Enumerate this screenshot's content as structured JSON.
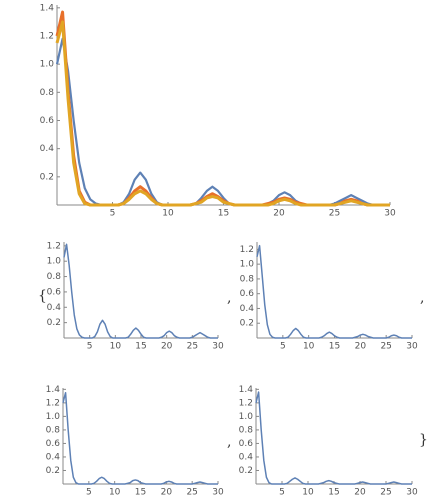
{
  "chart_data": [
    {
      "type": "line",
      "x": [
        0,
        0.5,
        1,
        1.5,
        2,
        2.5,
        3,
        3.5,
        4,
        4.5,
        5,
        5.5,
        6,
        6.5,
        7,
        7.5,
        8,
        8.5,
        9,
        9.5,
        10,
        10.5,
        11,
        11.5,
        12,
        12.5,
        13,
        13.5,
        14,
        14.5,
        15,
        15.5,
        16,
        16.5,
        17,
        17.5,
        18,
        18.5,
        19,
        19.5,
        20,
        20.5,
        21,
        21.5,
        22,
        22.5,
        23,
        23.5,
        24,
        24.5,
        25,
        25.5,
        26,
        26.5,
        27,
        27.5,
        28,
        28.5,
        29,
        29.5,
        30
      ],
      "series": [
        {
          "color": "#5E81B5",
          "values": [
            1,
            1.18,
            0.95,
            0.6,
            0.3,
            0.12,
            0.04,
            0.01,
            0,
            0,
            0,
            0,
            0.02,
            0.08,
            0.18,
            0.23,
            0.18,
            0.08,
            0.02,
            0,
            0,
            0,
            0,
            0,
            0,
            0.01,
            0.05,
            0.1,
            0.13,
            0.1,
            0.05,
            0.01,
            0,
            0,
            0,
            0,
            0,
            0,
            0.01,
            0.03,
            0.07,
            0.09,
            0.07,
            0.03,
            0.01,
            0,
            0,
            0,
            0,
            0,
            0.01,
            0.03,
            0.05,
            0.07,
            0.05,
            0.03,
            0.01,
            0,
            0,
            0,
            0
          ]
        },
        {
          "color": "#E8702A",
          "values": [
            1.2,
            1.37,
            0.8,
            0.35,
            0.1,
            0.02,
            0,
            0,
            0,
            0,
            0,
            0,
            0.01,
            0.05,
            0.1,
            0.13,
            0.1,
            0.05,
            0.01,
            0,
            0,
            0,
            0,
            0,
            0,
            0.01,
            0.03,
            0.06,
            0.08,
            0.06,
            0.03,
            0.01,
            0,
            0,
            0,
            0,
            0,
            0,
            0.01,
            0.02,
            0.04,
            0.05,
            0.04,
            0.02,
            0.01,
            0,
            0,
            0,
            0,
            0,
            0,
            0.01,
            0.03,
            0.04,
            0.03,
            0.01,
            0,
            0,
            0,
            0,
            0
          ]
        },
        {
          "color": "#E1A524",
          "values": [
            1.15,
            1.3,
            0.75,
            0.3,
            0.08,
            0.01,
            0,
            0,
            0,
            0,
            0,
            0,
            0.01,
            0.04,
            0.08,
            0.1,
            0.08,
            0.04,
            0.01,
            0,
            0,
            0,
            0,
            0,
            0,
            0.01,
            0.02,
            0.05,
            0.06,
            0.05,
            0.02,
            0.01,
            0,
            0,
            0,
            0,
            0,
            0,
            0,
            0.01,
            0.03,
            0.04,
            0.03,
            0.01,
            0,
            0,
            0,
            0,
            0,
            0,
            0,
            0.01,
            0.02,
            0.03,
            0.02,
            0.01,
            0,
            0,
            0,
            0,
            0
          ]
        }
      ],
      "xlim": [
        0,
        30
      ],
      "ylim": [
        0,
        1.42
      ],
      "xticks": [
        5,
        10,
        15,
        20,
        25,
        30
      ],
      "yticks": [
        0.2,
        0.4,
        0.6,
        0.8,
        {
          "value": 1,
          "label": "1.0"
        },
        1.2,
        1.4
      ]
    },
    {
      "type": "line",
      "x": [
        0,
        0.5,
        1,
        1.5,
        2,
        2.5,
        3,
        3.5,
        4,
        4.5,
        5,
        5.5,
        6,
        6.5,
        7,
        7.5,
        8,
        8.5,
        9,
        9.5,
        10,
        10.5,
        11,
        11.5,
        12,
        12.5,
        13,
        13.5,
        14,
        14.5,
        15,
        15.5,
        16,
        16.5,
        17,
        17.5,
        18,
        18.5,
        19,
        19.5,
        20,
        20.5,
        21,
        21.5,
        22,
        22.5,
        23,
        23.5,
        24,
        24.5,
        25,
        25.5,
        26,
        26.5,
        27,
        27.5,
        28,
        28.5,
        29,
        29.5,
        30
      ],
      "color": "#5E81B5",
      "values": [
        1.05,
        1.22,
        0.95,
        0.6,
        0.3,
        0.12,
        0.04,
        0.01,
        0,
        0,
        0,
        0,
        0.02,
        0.08,
        0.18,
        0.23,
        0.18,
        0.08,
        0.02,
        0,
        0,
        0,
        0,
        0,
        0,
        0.01,
        0.05,
        0.1,
        0.13,
        0.1,
        0.05,
        0.01,
        0,
        0,
        0,
        0,
        0,
        0,
        0.01,
        0.03,
        0.07,
        0.09,
        0.07,
        0.03,
        0.01,
        0,
        0,
        0,
        0,
        0,
        0.01,
        0.03,
        0.05,
        0.07,
        0.05,
        0.03,
        0.01,
        0,
        0,
        0,
        0
      ],
      "xlim": [
        0,
        30
      ],
      "ylim": [
        0,
        1.25
      ],
      "xticks": [
        5,
        10,
        15,
        20,
        25,
        30
      ],
      "yticks": [
        0.2,
        0.4,
        0.6,
        0.8,
        {
          "value": 1,
          "label": "1.0"
        },
        1.2
      ]
    },
    {
      "type": "line",
      "x": [
        0,
        0.5,
        1,
        1.5,
        2,
        2.5,
        3,
        3.5,
        4,
        4.5,
        5,
        5.5,
        6,
        6.5,
        7,
        7.5,
        8,
        8.5,
        9,
        9.5,
        10,
        10.5,
        11,
        11.5,
        12,
        12.5,
        13,
        13.5,
        14,
        14.5,
        15,
        15.5,
        16,
        16.5,
        17,
        17.5,
        18,
        18.5,
        19,
        19.5,
        20,
        20.5,
        21,
        21.5,
        22,
        22.5,
        23,
        23.5,
        24,
        24.5,
        25,
        25.5,
        26,
        26.5,
        27,
        27.5,
        28,
        28.5,
        29,
        29.5,
        30
      ],
      "color": "#5E81B5",
      "values": [
        1.1,
        1.25,
        0.85,
        0.45,
        0.18,
        0.05,
        0.01,
        0,
        0,
        0,
        0,
        0,
        0.01,
        0.05,
        0.1,
        0.13,
        0.1,
        0.05,
        0.01,
        0,
        0,
        0,
        0,
        0,
        0,
        0.01,
        0.03,
        0.06,
        0.08,
        0.06,
        0.03,
        0.01,
        0,
        0,
        0,
        0,
        0,
        0,
        0.01,
        0.02,
        0.04,
        0.05,
        0.04,
        0.02,
        0.01,
        0,
        0,
        0,
        0,
        0,
        0,
        0.01,
        0.03,
        0.04,
        0.03,
        0.01,
        0,
        0,
        0,
        0,
        0
      ],
      "xlim": [
        0,
        30
      ],
      "ylim": [
        0,
        1.3
      ],
      "xticks": [
        5,
        10,
        15,
        20,
        25,
        30
      ],
      "yticks": [
        0.2,
        0.4,
        0.6,
        0.8,
        {
          "value": 1,
          "label": "1.0"
        },
        1.2
      ]
    },
    {
      "type": "line",
      "x": [
        0,
        0.5,
        1,
        1.5,
        2,
        2.5,
        3,
        3.5,
        4,
        4.5,
        5,
        5.5,
        6,
        6.5,
        7,
        7.5,
        8,
        8.5,
        9,
        9.5,
        10,
        10.5,
        11,
        11.5,
        12,
        12.5,
        13,
        13.5,
        14,
        14.5,
        15,
        15.5,
        16,
        16.5,
        17,
        17.5,
        18,
        18.5,
        19,
        19.5,
        20,
        20.5,
        21,
        21.5,
        22,
        22.5,
        23,
        23.5,
        24,
        24.5,
        25,
        25.5,
        26,
        26.5,
        27,
        27.5,
        28,
        28.5,
        29,
        29.5,
        30
      ],
      "color": "#5E81B5",
      "values": [
        1.2,
        1.35,
        0.8,
        0.35,
        0.1,
        0.02,
        0,
        0,
        0,
        0,
        0,
        0,
        0.01,
        0.04,
        0.08,
        0.1,
        0.08,
        0.04,
        0.01,
        0,
        0,
        0,
        0,
        0,
        0,
        0.01,
        0.02,
        0.05,
        0.06,
        0.05,
        0.02,
        0.01,
        0,
        0,
        0,
        0,
        0,
        0,
        0,
        0.01,
        0.03,
        0.04,
        0.03,
        0.01,
        0,
        0,
        0,
        0,
        0,
        0,
        0,
        0.01,
        0.02,
        0.03,
        0.02,
        0.01,
        0,
        0,
        0,
        0,
        0
      ],
      "xlim": [
        0,
        30
      ],
      "ylim": [
        0,
        1.42
      ],
      "xticks": [
        5,
        10,
        15,
        20,
        25,
        30
      ],
      "yticks": [
        0.2,
        0.4,
        0.6,
        0.8,
        {
          "value": 1,
          "label": "1.0"
        },
        1.2,
        1.4
      ]
    },
    {
      "type": "line",
      "x": [
        0,
        0.5,
        1,
        1.5,
        2,
        2.5,
        3,
        3.5,
        4,
        4.5,
        5,
        5.5,
        6,
        6.5,
        7,
        7.5,
        8,
        8.5,
        9,
        9.5,
        10,
        10.5,
        11,
        11.5,
        12,
        12.5,
        13,
        13.5,
        14,
        14.5,
        15,
        15.5,
        16,
        16.5,
        17,
        17.5,
        18,
        18.5,
        19,
        19.5,
        20,
        20.5,
        21,
        21.5,
        22,
        22.5,
        23,
        23.5,
        24,
        24.5,
        25,
        25.5,
        26,
        26.5,
        27,
        27.5,
        28,
        28.5,
        29,
        29.5,
        30
      ],
      "color": "#5E81B5",
      "values": [
        1.2,
        1.36,
        0.8,
        0.35,
        0.1,
        0.02,
        0,
        0,
        0,
        0,
        0,
        0,
        0.01,
        0.04,
        0.07,
        0.09,
        0.07,
        0.04,
        0.01,
        0,
        0,
        0,
        0,
        0,
        0,
        0.01,
        0.02,
        0.04,
        0.05,
        0.04,
        0.02,
        0.01,
        0,
        0,
        0,
        0,
        0,
        0,
        0,
        0.01,
        0.02,
        0.03,
        0.02,
        0.01,
        0,
        0,
        0,
        0,
        0,
        0,
        0,
        0.01,
        0.02,
        0.03,
        0.02,
        0.01,
        0,
        0,
        0,
        0,
        0
      ],
      "xlim": [
        0,
        30
      ],
      "ylim": [
        0,
        1.42
      ],
      "xticks": [
        5,
        10,
        15,
        20,
        25,
        30
      ],
      "yticks": [
        0.2,
        0.4,
        0.6,
        0.8,
        {
          "value": 1,
          "label": "1.0"
        },
        1.2,
        1.4
      ]
    }
  ],
  "list_delimiters": {
    "open": "{",
    "separator": ",",
    "close": "}"
  }
}
